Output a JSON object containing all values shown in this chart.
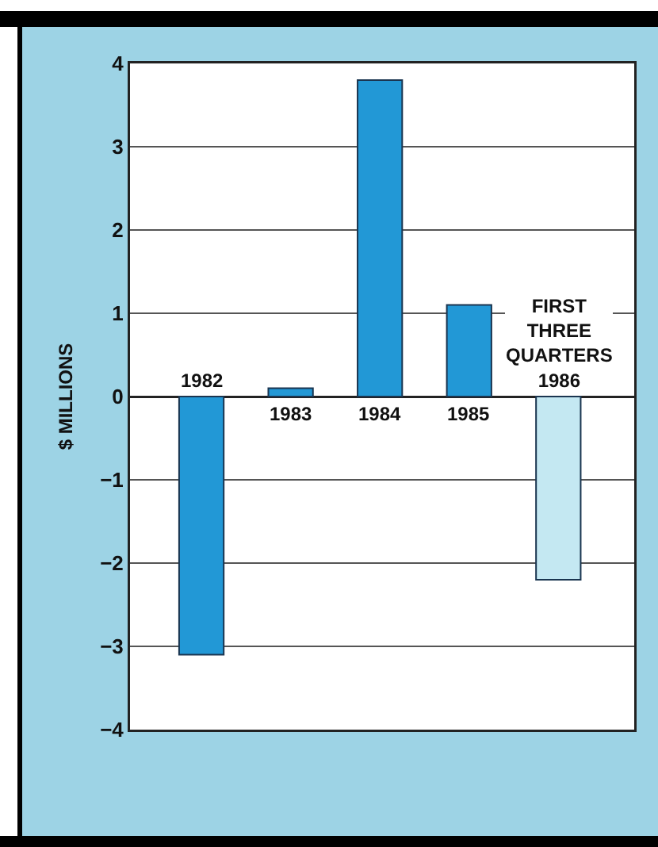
{
  "chart_data": {
    "type": "bar",
    "ylabel": "$ MILLIONS",
    "categories": [
      "1982",
      "1983",
      "1984",
      "1985",
      "FIRST THREE QUARTERS 1986"
    ],
    "values": [
      -3.1,
      0.1,
      3.8,
      1.1,
      -2.2
    ],
    "colors": [
      "#2298d6",
      "#2298d6",
      "#2298d6",
      "#2298d6",
      "#c4e8f2"
    ],
    "ylim": [
      -4,
      4
    ],
    "yticks": [
      -4,
      -3,
      -2,
      -1,
      0,
      1,
      2,
      3,
      4
    ],
    "grid": "y"
  }
}
